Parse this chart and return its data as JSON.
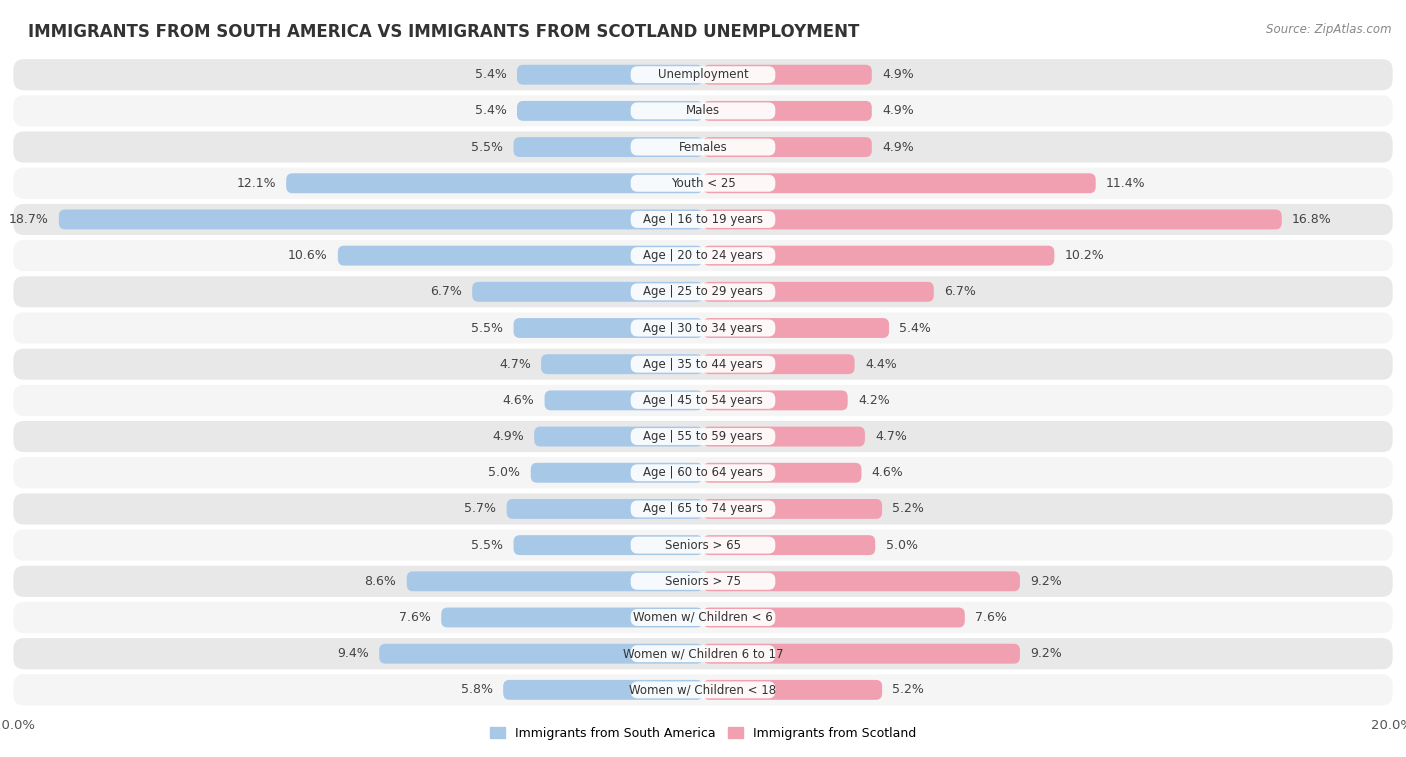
{
  "title": "IMMIGRANTS FROM SOUTH AMERICA VS IMMIGRANTS FROM SCOTLAND UNEMPLOYMENT",
  "source": "Source: ZipAtlas.com",
  "categories": [
    "Unemployment",
    "Males",
    "Females",
    "Youth < 25",
    "Age | 16 to 19 years",
    "Age | 20 to 24 years",
    "Age | 25 to 29 years",
    "Age | 30 to 34 years",
    "Age | 35 to 44 years",
    "Age | 45 to 54 years",
    "Age | 55 to 59 years",
    "Age | 60 to 64 years",
    "Age | 65 to 74 years",
    "Seniors > 65",
    "Seniors > 75",
    "Women w/ Children < 6",
    "Women w/ Children 6 to 17",
    "Women w/ Children < 18"
  ],
  "south_america": [
    5.4,
    5.4,
    5.5,
    12.1,
    18.7,
    10.6,
    6.7,
    5.5,
    4.7,
    4.6,
    4.9,
    5.0,
    5.7,
    5.5,
    8.6,
    7.6,
    9.4,
    5.8
  ],
  "scotland": [
    4.9,
    4.9,
    4.9,
    11.4,
    16.8,
    10.2,
    6.7,
    5.4,
    4.4,
    4.2,
    4.7,
    4.6,
    5.2,
    5.0,
    9.2,
    7.6,
    9.2,
    5.2
  ],
  "color_south_america": "#a8c8e8",
  "color_scotland": "#f0a0b0",
  "color_sa_dark": "#7bafd4",
  "color_sc_dark": "#e8687a",
  "axis_max": 20.0,
  "background_color": "#ffffff",
  "row_bg_color": "#e8e8e8",
  "row_alt_color": "#f5f5f5",
  "label_fontsize": 9,
  "title_fontsize": 12,
  "legend_fontsize": 9
}
